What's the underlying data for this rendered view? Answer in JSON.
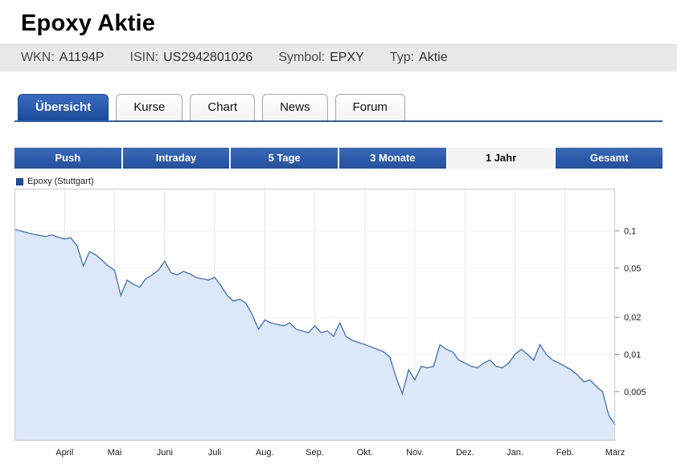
{
  "header": {
    "title": "Epoxy Aktie"
  },
  "meta": {
    "items": [
      {
        "label": "WKN:",
        "value": "A1194P"
      },
      {
        "label": "ISIN:",
        "value": "US2942801026"
      },
      {
        "label": "Symbol:",
        "value": "EPXY"
      },
      {
        "label": "Typ:",
        "value": "Aktie"
      }
    ]
  },
  "tabs": {
    "items": [
      {
        "label": "Übersicht",
        "active": true
      },
      {
        "label": "Kurse",
        "active": false
      },
      {
        "label": "Chart",
        "active": false
      },
      {
        "label": "News",
        "active": false
      },
      {
        "label": "Forum",
        "active": false
      }
    ]
  },
  "ranges": {
    "items": [
      {
        "label": "Push",
        "active": false
      },
      {
        "label": "Intraday",
        "active": false
      },
      {
        "label": "5 Tage",
        "active": false
      },
      {
        "label": "3 Monate",
        "active": false
      },
      {
        "label": "1 Jahr",
        "active": true
      },
      {
        "label": "Gesamt",
        "active": false
      }
    ]
  },
  "legend": {
    "label": "Epoxy (Stuttgart)",
    "swatch_color": "#1e4f9f"
  },
  "colors": {
    "accent_blue": "#2b5cae",
    "tab_active_blue": "#1b4a9a",
    "button_blue": "#2f5dab",
    "line": "#3f72b4",
    "area_fill": "#dce8f8",
    "grid": "#e2e5ea",
    "plot_border": "#c9c9c9"
  },
  "chart_data": {
    "type": "area",
    "series_name": "Epoxy (Stuttgart)",
    "selected_range": "1 Jahr",
    "y_scale": "log",
    "ylim": [
      0.002,
      0.22
    ],
    "y_ticks": [
      {
        "value": 0.1,
        "label": "0,1"
      },
      {
        "value": 0.05,
        "label": "0,05"
      },
      {
        "value": 0.02,
        "label": "0,02"
      },
      {
        "value": 0.01,
        "label": "0,01"
      },
      {
        "value": 0.005,
        "label": "0,005"
      }
    ],
    "x_labels": [
      "April",
      "Mai",
      "Juni",
      "Juli",
      "Aug.",
      "Sep.",
      "Okt.",
      "Nov.",
      "Dez.",
      "Jan.",
      "Feb.",
      "März"
    ],
    "values": [
      0.103,
      0.1,
      0.097,
      0.094,
      0.092,
      0.09,
      0.093,
      0.089,
      0.086,
      0.088,
      0.076,
      0.052,
      0.068,
      0.064,
      0.058,
      0.052,
      0.048,
      0.03,
      0.04,
      0.037,
      0.035,
      0.041,
      0.044,
      0.048,
      0.057,
      0.046,
      0.044,
      0.047,
      0.045,
      0.042,
      0.041,
      0.04,
      0.042,
      0.036,
      0.03,
      0.027,
      0.028,
      0.026,
      0.021,
      0.016,
      0.019,
      0.018,
      0.0175,
      0.017,
      0.018,
      0.016,
      0.0155,
      0.015,
      0.017,
      0.015,
      0.0155,
      0.014,
      0.018,
      0.014,
      0.013,
      0.0125,
      0.012,
      0.0115,
      0.011,
      0.0105,
      0.0095,
      0.0065,
      0.0048,
      0.0075,
      0.0062,
      0.008,
      0.0078,
      0.008,
      0.012,
      0.011,
      0.0105,
      0.009,
      0.0085,
      0.008,
      0.0078,
      0.0085,
      0.009,
      0.008,
      0.0078,
      0.0085,
      0.01,
      0.011,
      0.01,
      0.009,
      0.012,
      0.01,
      0.009,
      0.0085,
      0.008,
      0.0075,
      0.0068,
      0.006,
      0.0062,
      0.0055,
      0.005,
      0.0032,
      0.0027
    ]
  }
}
